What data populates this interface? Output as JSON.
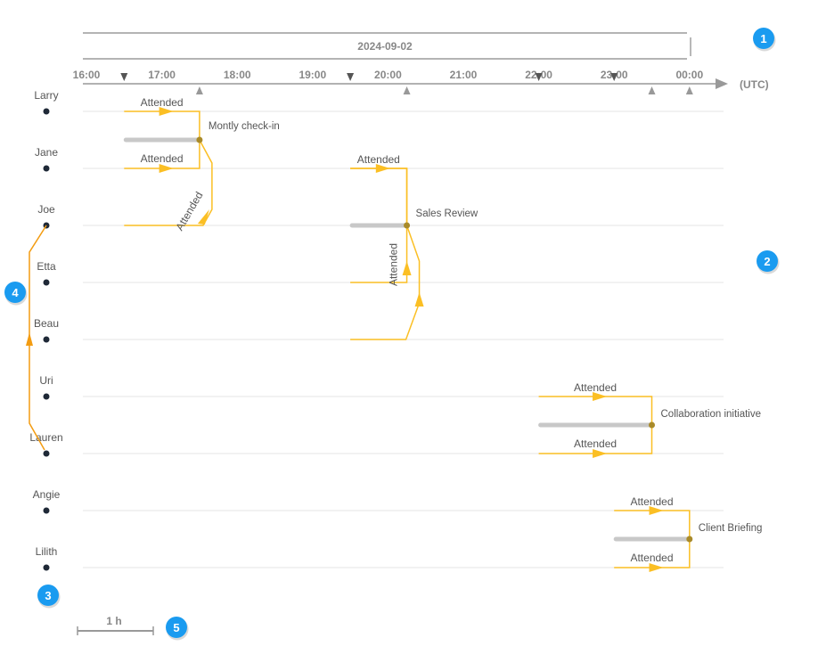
{
  "date_label": "2024-09-02",
  "timezone_label": "(UTC)",
  "time_ticks": [
    "16:00",
    "17:00",
    "18:00",
    "19:00",
    "20:00",
    "21:00",
    "22:00",
    "23:00",
    "00:00"
  ],
  "people": [
    "Larry",
    "Jane",
    "Joe",
    "Etta",
    "Beau",
    "Uri",
    "Lauren",
    "Angie",
    "Lilith"
  ],
  "events": [
    {
      "title": "Montly check-in",
      "start": "16:30",
      "end": "17:30",
      "attendees": [
        "Larry",
        "Jane",
        "Joe"
      ],
      "status": "Attended"
    },
    {
      "title": "Sales Review",
      "start": "19:30",
      "end": "20:15",
      "attendees": [
        "Jane",
        "Etta",
        "Beau"
      ],
      "status": "Attended"
    },
    {
      "title": "Collaboration initiative",
      "start": "22:00",
      "end": "23:30",
      "attendees": [
        "Uri",
        "Lauren"
      ],
      "status": "Attended"
    },
    {
      "title": "Client Briefing",
      "start": "23:00",
      "end": "00:00",
      "attendees": [
        "Angie",
        "Lilith"
      ],
      "status": "Attended"
    }
  ],
  "attended_label": "Attended",
  "scale_label": "1 h",
  "badges": [
    "1",
    "2",
    "3",
    "4",
    "5"
  ],
  "colors": {
    "flow": "#fbbf24",
    "link": "#f39c12",
    "bar": "#c8c8c8",
    "badge": "#1a9bf0",
    "dot": "#1f2937"
  }
}
